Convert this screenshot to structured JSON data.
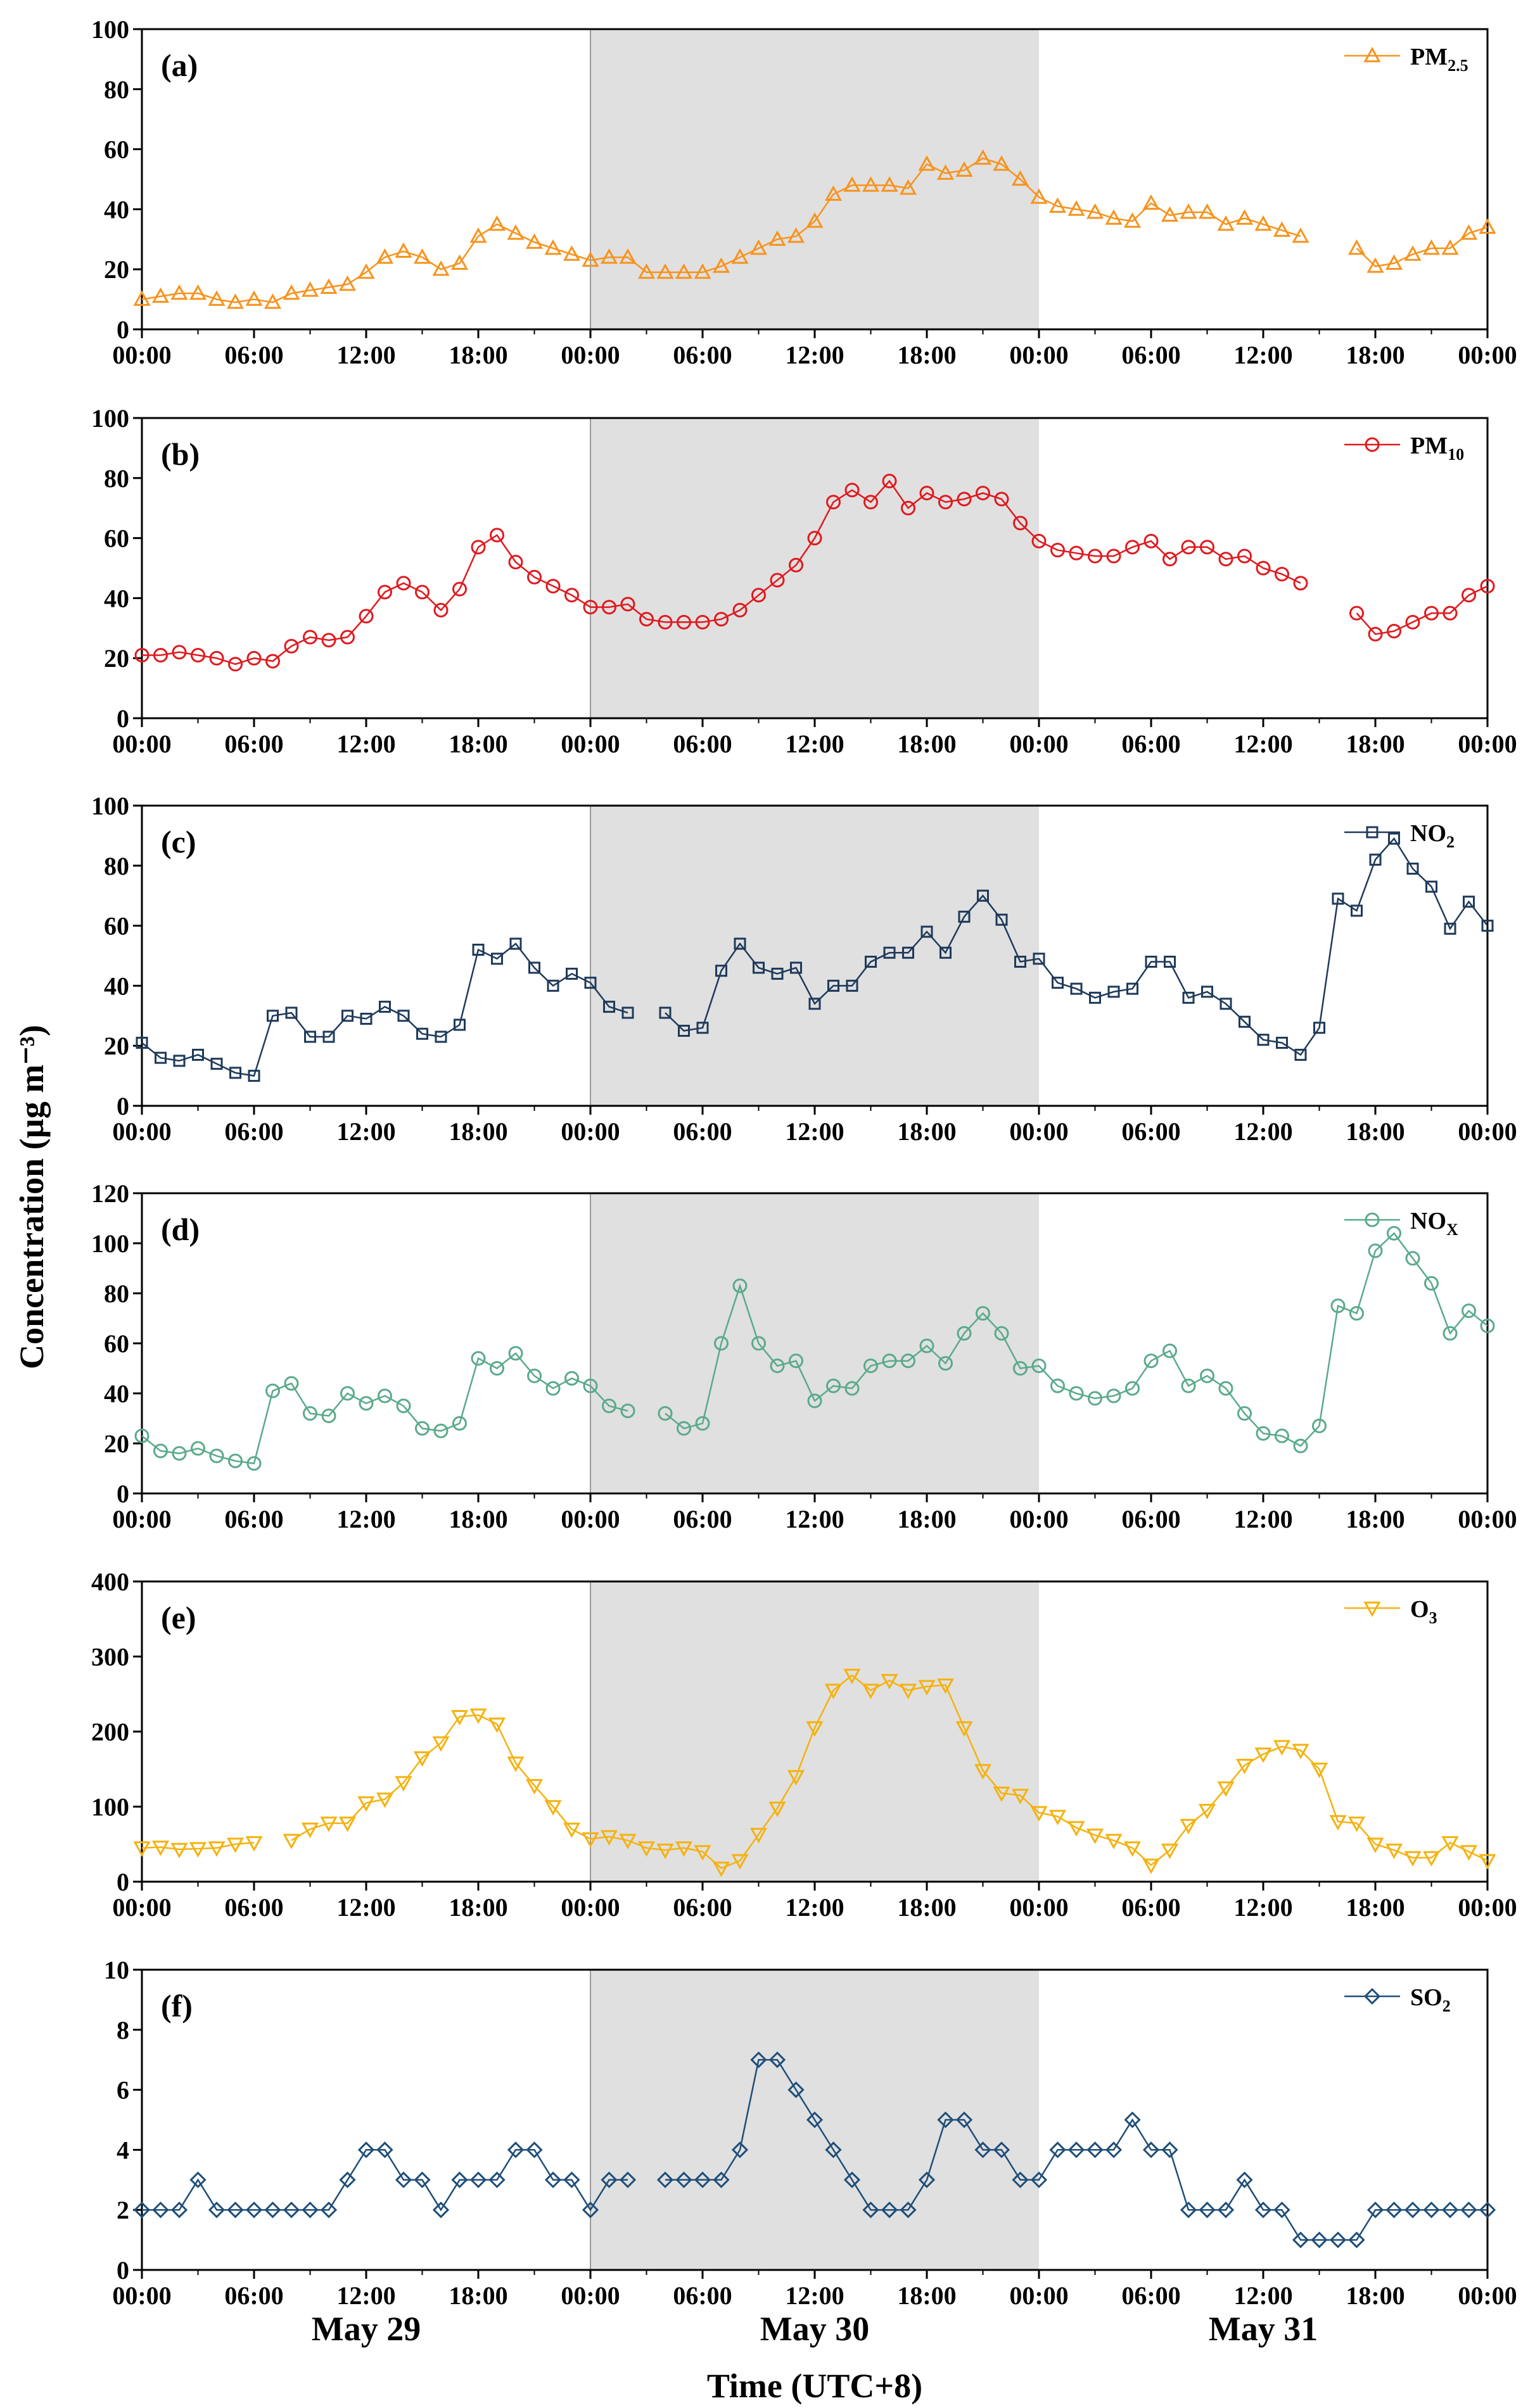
{
  "figure": {
    "ylabel": "Concentration (µg m⁻³)",
    "xlabel": "Time (UTC+8)",
    "day_labels": [
      "May 29",
      "May 30",
      "May 31"
    ],
    "x_tick_labels": [
      "00:00",
      "06:00",
      "12:00",
      "18:00",
      "00:00",
      "06:00",
      "12:00",
      "18:00",
      "00:00",
      "06:00",
      "12:00",
      "18:00",
      "00:00"
    ],
    "shaded_region": {
      "from_hour": 24,
      "to_hour": 48,
      "color": "#e0e0e0"
    }
  },
  "chart_data": [
    {
      "type": "line",
      "panel": "(a)",
      "series_name": "PM2.5",
      "legend": {
        "base": "PM",
        "sub": "2.5"
      },
      "marker": "triangle-up",
      "color": "#f7931e",
      "ylim": [
        0,
        100
      ],
      "yticks": [
        0,
        20,
        40,
        60,
        80,
        100
      ],
      "x_start_hour": 0,
      "x_step_hours": 1,
      "values": [
        10,
        11,
        12,
        12,
        10,
        9,
        10,
        9,
        12,
        13,
        14,
        15,
        19,
        24,
        26,
        24,
        20,
        22,
        31,
        35,
        32,
        29,
        27,
        25,
        23,
        24,
        24,
        19,
        19,
        19,
        19,
        21,
        24,
        27,
        30,
        31,
        36,
        45,
        48,
        48,
        48,
        47,
        55,
        52,
        53,
        57,
        55,
        50,
        44,
        41,
        40,
        39,
        37,
        36,
        42,
        38,
        39,
        39,
        35,
        37,
        35,
        33,
        31,
        null,
        null,
        27,
        21,
        22,
        25,
        27,
        27,
        32,
        34
      ]
    },
    {
      "type": "line",
      "panel": "(b)",
      "series_name": "PM10",
      "legend": {
        "base": "PM",
        "sub": "10"
      },
      "marker": "circle",
      "color": "#e0191e",
      "ylim": [
        0,
        100
      ],
      "yticks": [
        0,
        20,
        40,
        60,
        80,
        100
      ],
      "x_start_hour": 0,
      "x_step_hours": 1,
      "values": [
        21,
        21,
        22,
        21,
        20,
        18,
        20,
        19,
        24,
        27,
        26,
        27,
        34,
        42,
        45,
        42,
        36,
        43,
        57,
        61,
        52,
        47,
        44,
        41,
        37,
        37,
        38,
        33,
        32,
        32,
        32,
        33,
        36,
        41,
        46,
        51,
        60,
        72,
        76,
        72,
        79,
        70,
        75,
        72,
        73,
        75,
        73,
        65,
        59,
        56,
        55,
        54,
        54,
        57,
        59,
        53,
        57,
        57,
        53,
        54,
        50,
        48,
        45,
        null,
        null,
        35,
        28,
        29,
        32,
        35,
        35,
        41,
        44
      ]
    },
    {
      "type": "line",
      "panel": "(c)",
      "series_name": "NO2",
      "legend": {
        "base": "NO",
        "sub": "2"
      },
      "marker": "square",
      "color": "#1f3a5a",
      "ylim": [
        0,
        100
      ],
      "yticks": [
        0,
        20,
        40,
        60,
        80,
        100
      ],
      "x_start_hour": 0,
      "x_step_hours": 1,
      "values": [
        21,
        16,
        15,
        17,
        14,
        11,
        10,
        30,
        31,
        23,
        23,
        30,
        29,
        33,
        30,
        24,
        23,
        27,
        52,
        49,
        54,
        46,
        40,
        44,
        41,
        33,
        31,
        null,
        31,
        25,
        26,
        45,
        54,
        46,
        44,
        46,
        34,
        40,
        40,
        48,
        51,
        51,
        58,
        51,
        63,
        70,
        62,
        48,
        49,
        41,
        39,
        36,
        38,
        39,
        48,
        48,
        36,
        38,
        34,
        28,
        22,
        21,
        17,
        26,
        69,
        65,
        82,
        89,
        79,
        73,
        59,
        68,
        60
      ]
    },
    {
      "type": "line",
      "panel": "(d)",
      "series_name": "NOX",
      "legend": {
        "base": "NO",
        "sub": "X"
      },
      "marker": "circle",
      "color": "#5aaa8a",
      "ylim": [
        0,
        120
      ],
      "yticks": [
        0,
        20,
        40,
        60,
        80,
        100,
        120
      ],
      "x_start_hour": 0,
      "x_step_hours": 1,
      "values": [
        23,
        17,
        16,
        18,
        15,
        13,
        12,
        41,
        44,
        32,
        31,
        40,
        36,
        39,
        35,
        26,
        25,
        28,
        54,
        50,
        56,
        47,
        42,
        46,
        43,
        35,
        33,
        null,
        32,
        26,
        28,
        60,
        83,
        60,
        51,
        53,
        37,
        43,
        42,
        51,
        53,
        53,
        59,
        52,
        64,
        72,
        64,
        50,
        51,
        43,
        40,
        38,
        39,
        42,
        53,
        57,
        43,
        47,
        42,
        32,
        24,
        23,
        19,
        27,
        75,
        72,
        97,
        104,
        94,
        84,
        64,
        73,
        67
      ]
    },
    {
      "type": "line",
      "panel": "(e)",
      "series_name": "O3",
      "legend": {
        "base": "O",
        "sub": "3"
      },
      "marker": "triangle-down",
      "color": "#f5b20f",
      "ylim": [
        0,
        400
      ],
      "yticks": [
        0,
        100,
        200,
        300,
        400
      ],
      "x_start_hour": 0,
      "x_step_hours": 1,
      "values": [
        45,
        46,
        43,
        44,
        45,
        50,
        52,
        null,
        55,
        70,
        78,
        78,
        105,
        110,
        132,
        165,
        185,
        220,
        222,
        210,
        158,
        128,
        100,
        70,
        57,
        60,
        55,
        45,
        42,
        45,
        40,
        18,
        28,
        63,
        98,
        140,
        205,
        255,
        275,
        255,
        268,
        255,
        260,
        262,
        205,
        148,
        118,
        115,
        92,
        87,
        72,
        62,
        55,
        45,
        22,
        42,
        75,
        95,
        125,
        155,
        170,
        180,
        175,
        150,
        80,
        78,
        50,
        42,
        32,
        32,
        52,
        40,
        28
      ]
    },
    {
      "type": "line",
      "panel": "(f)",
      "series_name": "SO2",
      "legend": {
        "base": "SO",
        "sub": "2"
      },
      "marker": "diamond",
      "color": "#1f4e79",
      "ylim": [
        0,
        10
      ],
      "yticks": [
        0,
        2,
        4,
        6,
        8,
        10
      ],
      "x_start_hour": 0,
      "x_step_hours": 1,
      "values": [
        2,
        2,
        2,
        3,
        2,
        2,
        2,
        2,
        2,
        2,
        2,
        3,
        4,
        4,
        3,
        3,
        2,
        3,
        3,
        3,
        4,
        4,
        3,
        3,
        2,
        3,
        3,
        null,
        3,
        3,
        3,
        3,
        4,
        7,
        7,
        6,
        5,
        4,
        3,
        2,
        2,
        2,
        3,
        5,
        5,
        4,
        4,
        3,
        3,
        4,
        4,
        4,
        4,
        5,
        4,
        4,
        2,
        2,
        2,
        3,
        2,
        2,
        1,
        1,
        1,
        1,
        2,
        2,
        2,
        2,
        2,
        2,
        2
      ]
    }
  ]
}
